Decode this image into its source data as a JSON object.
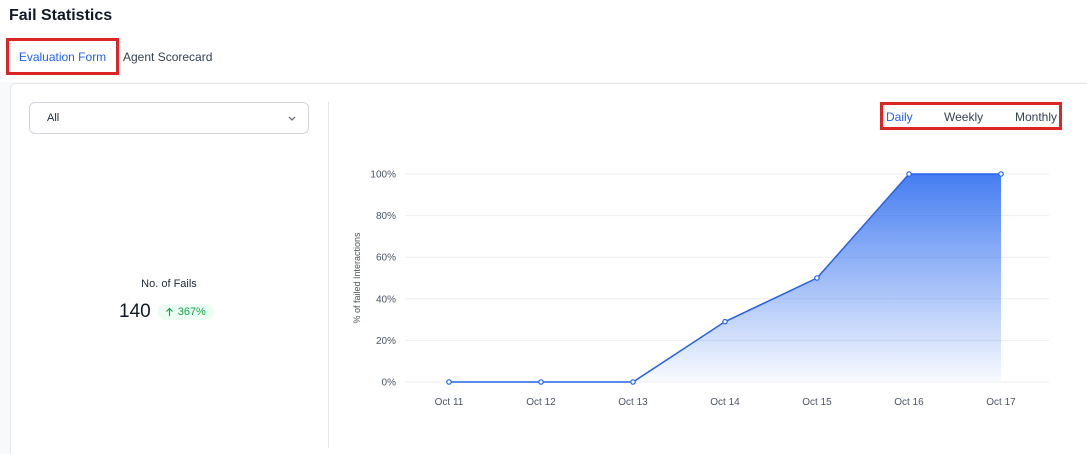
{
  "header": {
    "title": "Fail Statistics"
  },
  "tabs": [
    {
      "label": "Evaluation Form",
      "active": true
    },
    {
      "label": "Agent Scorecard",
      "active": false
    }
  ],
  "filter": {
    "selected": "All"
  },
  "summary": {
    "label": "No. of Fails",
    "count": "140",
    "change": "367%",
    "change_direction": "up"
  },
  "period_selector": {
    "options": [
      "Daily",
      "Weekly",
      "Monthly"
    ],
    "selected": "Daily"
  },
  "colors": {
    "accent": "#2563eb",
    "highlight_border": "#dc2626",
    "badge_green": "#16a34a"
  },
  "chart_data": {
    "type": "area",
    "ylabel": "% of failed Interactions",
    "categories": [
      "Oct 11",
      "Oct 12",
      "Oct 13",
      "Oct 14",
      "Oct 15",
      "Oct 16",
      "Oct 17"
    ],
    "values": [
      0,
      0,
      0,
      29,
      50,
      100,
      100
    ],
    "yticks": [
      "0%",
      "20%",
      "40%",
      "60%",
      "80%",
      "100%"
    ],
    "ylim": [
      0,
      100
    ],
    "grid": true
  }
}
